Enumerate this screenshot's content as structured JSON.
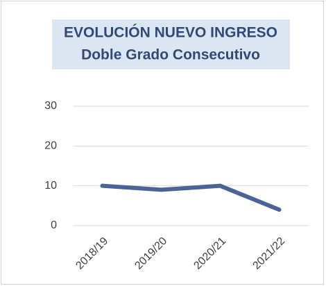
{
  "chart_data": {
    "type": "line",
    "title": "EVOLUCIÓN NUEVO INGRESO",
    "subtitle": "Doble Grado Consecutivo",
    "categories": [
      "2018/19",
      "2019/20",
      "2020/21",
      "2021/22"
    ],
    "series": [
      {
        "name": "Nuevo ingreso",
        "color": "#4a6496",
        "values": [
          10,
          9,
          10,
          4
        ]
      }
    ],
    "ylim": [
      0,
      30
    ],
    "yticks": [
      0,
      10,
      20,
      30
    ],
    "grid": true
  }
}
